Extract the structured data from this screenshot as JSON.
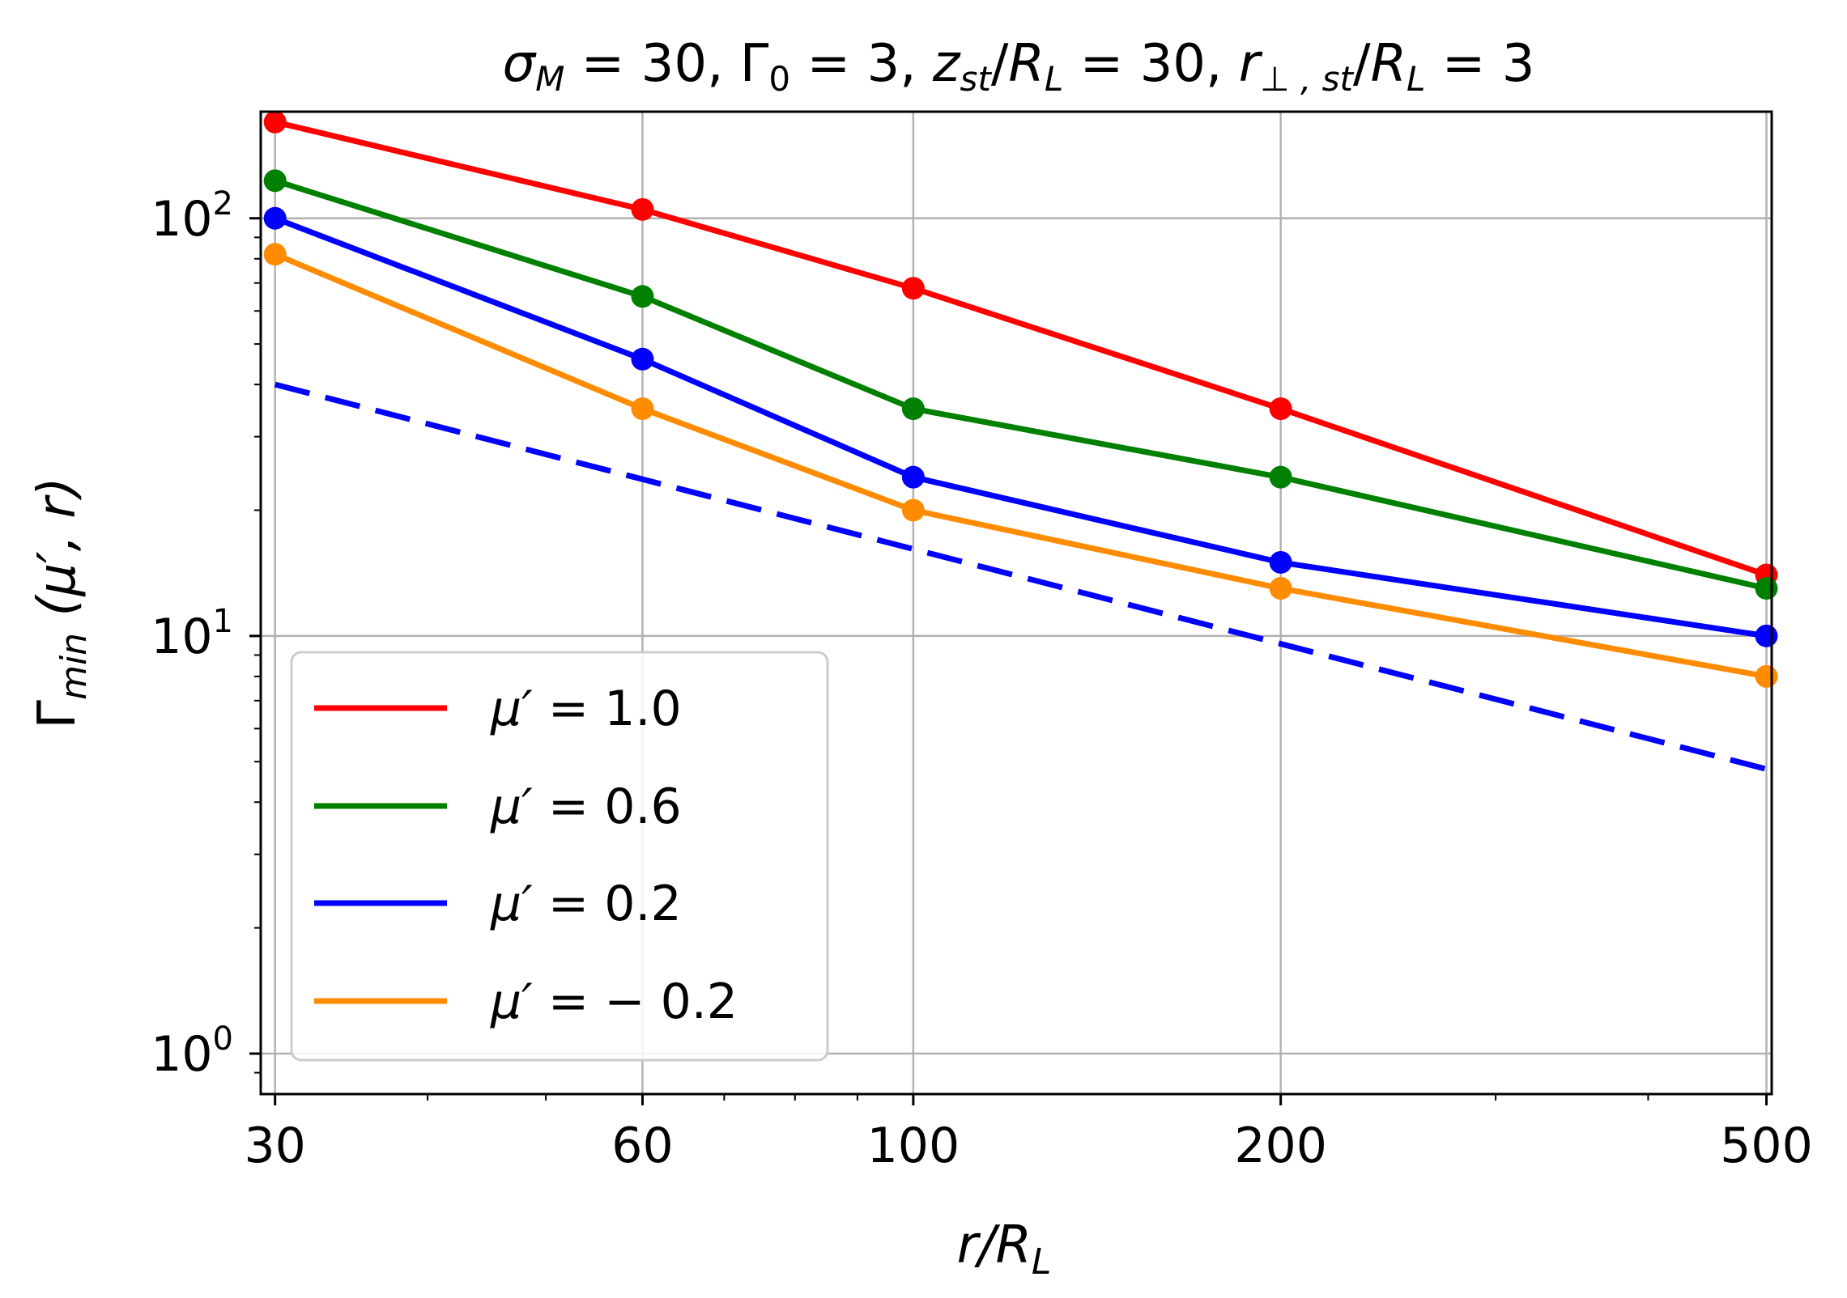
{
  "chart_data": {
    "type": "line",
    "title": "σ_M = 30, Γ_0 = 3, z_st/R_L = 30, r_⊥,st/R_L = 3",
    "title_parts": {
      "sigma": "σ",
      "sigma_sub": "M",
      "sigma_val": " = 30, ",
      "gamma": "Γ",
      "gamma_sub": "0",
      "gamma_val": " = 3, ",
      "z": "z",
      "z_sub": "st",
      "z_mid": "/",
      "zr": "R",
      "zr_sub": "L",
      "z_val": " = 30, ",
      "r": "r",
      "r_sub": "⊥ , st",
      "r_mid": "/",
      "rr": "R",
      "rr_sub": "L",
      "r_val": " = 3"
    },
    "xlabel": "r/R_L",
    "xlabel_parts": {
      "main": "r/R",
      "sub": "L"
    },
    "ylabel": "Γ_min (μ′, r)",
    "ylabel_parts": {
      "main": "Γ",
      "sub": "min",
      "rest": " (μ′, r)"
    },
    "x_scale": "log",
    "y_scale": "log",
    "xlim": [
      29.2,
      505
    ],
    "ylim": [
      0.8,
      180
    ],
    "grid": true,
    "legend_position": "lower-left",
    "x_ticks": [
      30,
      60,
      100,
      200,
      500
    ],
    "x_tick_labels": [
      "30",
      "60",
      "100",
      "200",
      "500"
    ],
    "y_ticks": [
      1,
      10,
      100
    ],
    "y_tick_labels": [
      {
        "base": "10",
        "exp": "0"
      },
      {
        "base": "10",
        "exp": "1"
      },
      {
        "base": "10",
        "exp": "2"
      }
    ],
    "x": [
      30,
      60,
      100,
      200,
      500
    ],
    "series": [
      {
        "name": "μ′ = 1.0",
        "legend_prefix": "μ′ = ",
        "legend_value": "1.0",
        "color": "#ff0000",
        "style": "solid",
        "values": [
          170,
          105,
          68,
          35,
          14
        ]
      },
      {
        "name": "μ′ = 0.6",
        "legend_prefix": "μ′ = ",
        "legend_value": "0.6",
        "color": "#008000",
        "style": "solid",
        "values": [
          123,
          65,
          35,
          24,
          13
        ]
      },
      {
        "name": "μ′ = 0.2",
        "legend_prefix": "μ′ = ",
        "legend_value": "0.2",
        "color": "#0000ff",
        "style": "solid",
        "values": [
          100,
          46,
          24,
          15,
          10
        ]
      },
      {
        "name": "μ′ = − 0.2",
        "legend_prefix": "μ′ = ",
        "legend_value": "− 0.2",
        "color": "#ff8c00",
        "style": "solid",
        "values": [
          82,
          35,
          20,
          13,
          8
        ]
      }
    ],
    "reference_line": {
      "color": "#0000ff",
      "style": "dashed",
      "x": [
        30,
        500
      ],
      "values": [
        40,
        4.8
      ]
    }
  }
}
